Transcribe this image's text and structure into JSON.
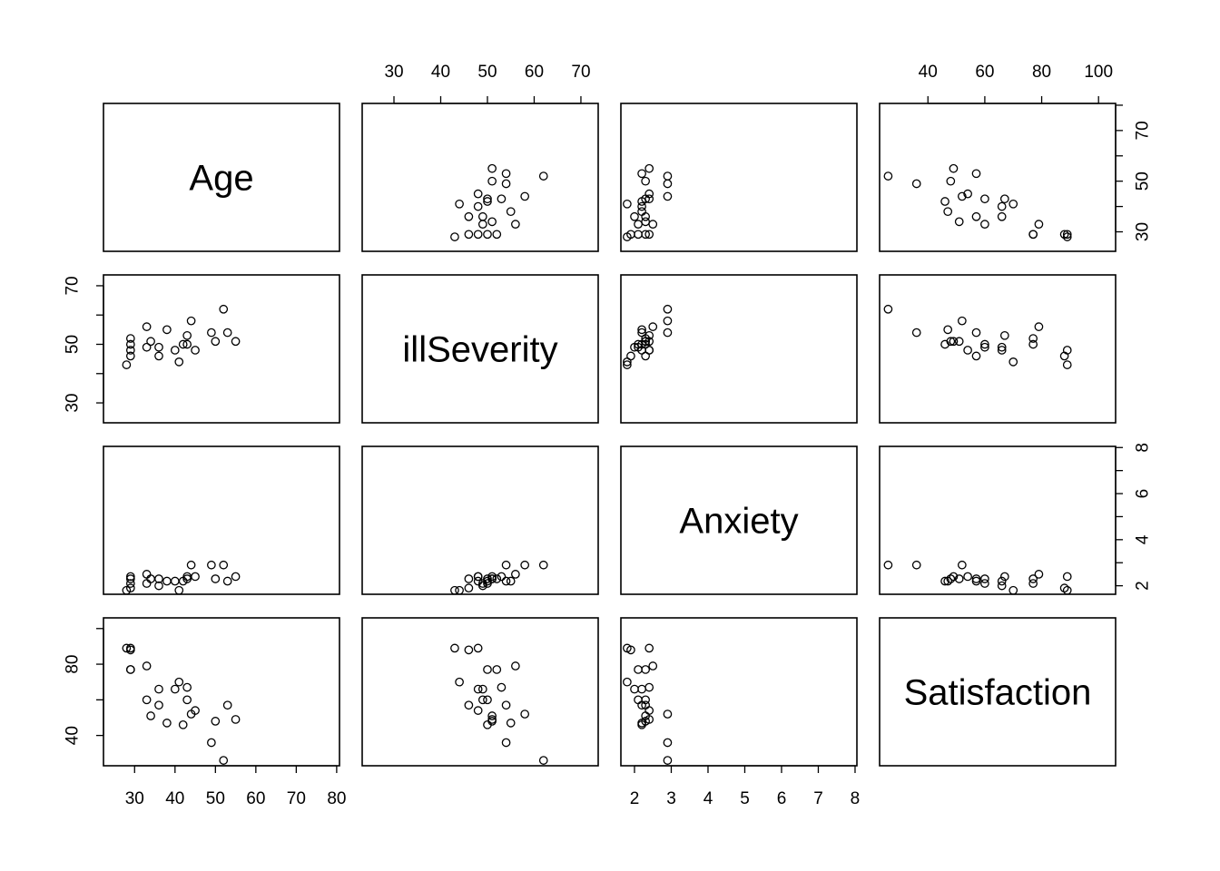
{
  "chart_data": {
    "type": "scatter",
    "title": "",
    "variables": [
      "Age",
      "illSeverity",
      "Anxiety",
      "Satisfaction"
    ],
    "ranges": {
      "Age": [
        22.3,
        80.7
      ],
      "illSeverity": [
        23.2,
        73.7
      ],
      "Anxiety": [
        1.63,
        8.05
      ],
      "Satisfaction": [
        23.0,
        106.0
      ]
    },
    "axis_ticks": {
      "Age": [
        30,
        40,
        50,
        60,
        70,
        80
      ],
      "illSeverity": [
        30,
        40,
        50,
        60,
        70
      ],
      "Anxiety": [
        2,
        3,
        4,
        5,
        6,
        7,
        8
      ],
      "Satisfaction": [
        40,
        60,
        80,
        100
      ]
    },
    "axis_tick_labels": {
      "top": {
        "illSeverity": [
          "30",
          "40",
          "50",
          "60",
          "70"
        ],
        "Satisfaction": [
          "40",
          "60",
          "80",
          "100"
        ]
      },
      "bottom": {
        "Age": [
          "30",
          "40",
          "50",
          "60",
          "70",
          "80"
        ],
        "Anxiety": [
          "2",
          "3",
          "4",
          "5",
          "6",
          "7",
          "8"
        ]
      },
      "left": {
        "illSeverity": [
          "30",
          "50",
          "70"
        ],
        "Satisfaction": [
          "40",
          "80"
        ]
      },
      "right": {
        "Age": [
          "30",
          "50",
          "70"
        ],
        "Anxiety": [
          "2",
          "4",
          "6",
          "8"
        ]
      }
    },
    "points": [
      {
        "Age": 50,
        "illSeverity": 51,
        "Anxiety": 2.3,
        "Satisfaction": 48
      },
      {
        "Age": 36,
        "illSeverity": 46,
        "Anxiety": 2.3,
        "Satisfaction": 57
      },
      {
        "Age": 40,
        "illSeverity": 48,
        "Anxiety": 2.2,
        "Satisfaction": 66
      },
      {
        "Age": 41,
        "illSeverity": 44,
        "Anxiety": 1.8,
        "Satisfaction": 70
      },
      {
        "Age": 28,
        "illSeverity": 43,
        "Anxiety": 1.8,
        "Satisfaction": 89
      },
      {
        "Age": 49,
        "illSeverity": 54,
        "Anxiety": 2.9,
        "Satisfaction": 36
      },
      {
        "Age": 42,
        "illSeverity": 50,
        "Anxiety": 2.2,
        "Satisfaction": 46
      },
      {
        "Age": 45,
        "illSeverity": 48,
        "Anxiety": 2.4,
        "Satisfaction": 54
      },
      {
        "Age": 52,
        "illSeverity": 62,
        "Anxiety": 2.9,
        "Satisfaction": 26
      },
      {
        "Age": 29,
        "illSeverity": 50,
        "Anxiety": 2.1,
        "Satisfaction": 77
      },
      {
        "Age": 29,
        "illSeverity": 48,
        "Anxiety": 2.4,
        "Satisfaction": 89
      },
      {
        "Age": 43,
        "illSeverity": 53,
        "Anxiety": 2.4,
        "Satisfaction": 67
      },
      {
        "Age": 38,
        "illSeverity": 55,
        "Anxiety": 2.2,
        "Satisfaction": 47
      },
      {
        "Age": 34,
        "illSeverity": 51,
        "Anxiety": 2.3,
        "Satisfaction": 51
      },
      {
        "Age": 53,
        "illSeverity": 54,
        "Anxiety": 2.2,
        "Satisfaction": 57
      },
      {
        "Age": 36,
        "illSeverity": 49,
        "Anxiety": 2.0,
        "Satisfaction": 66
      },
      {
        "Age": 33,
        "illSeverity": 56,
        "Anxiety": 2.5,
        "Satisfaction": 79
      },
      {
        "Age": 29,
        "illSeverity": 46,
        "Anxiety": 1.9,
        "Satisfaction": 88
      },
      {
        "Age": 33,
        "illSeverity": 49,
        "Anxiety": 2.1,
        "Satisfaction": 60
      },
      {
        "Age": 55,
        "illSeverity": 51,
        "Anxiety": 2.4,
        "Satisfaction": 49
      },
      {
        "Age": 29,
        "illSeverity": 52,
        "Anxiety": 2.3,
        "Satisfaction": 77
      },
      {
        "Age": 44,
        "illSeverity": 58,
        "Anxiety": 2.9,
        "Satisfaction": 52
      },
      {
        "Age": 43,
        "illSeverity": 50,
        "Anxiety": 2.3,
        "Satisfaction": 60
      }
    ]
  }
}
